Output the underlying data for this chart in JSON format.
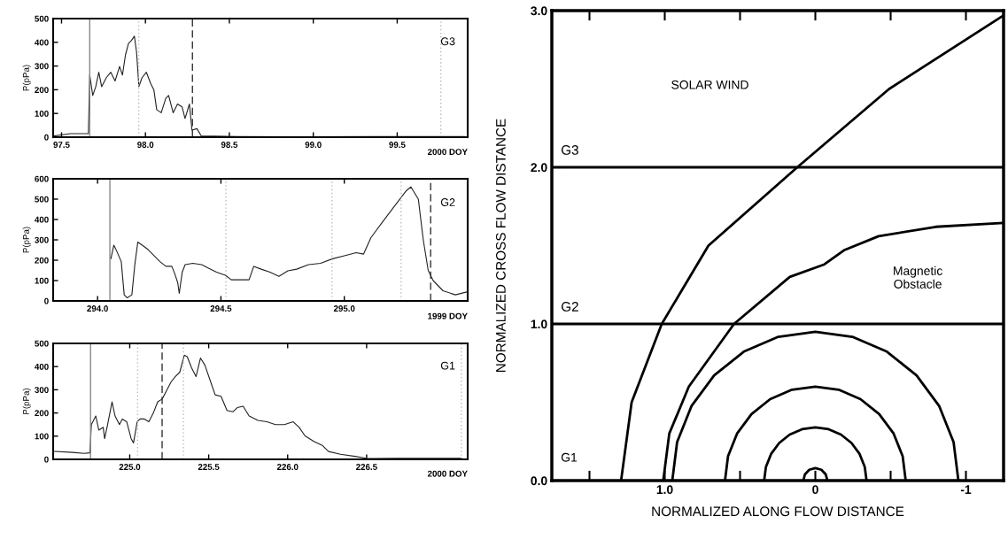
{
  "chart_data": [
    {
      "type": "line",
      "ylabel": "P(pPa)",
      "annotations": [
        "G3",
        "2000 DOY"
      ],
      "xlim": [
        97.45,
        99.92
      ],
      "ylim": [
        0,
        500
      ],
      "xticks": [
        {
          "value": 97.5,
          "label": "97.5"
        },
        {
          "value": 98.0,
          "label": "98.0"
        },
        {
          "value": 98.5,
          "label": "98.5"
        },
        {
          "value": 99.0,
          "label": "99.0"
        },
        {
          "value": 99.5,
          "label": "99.5"
        }
      ],
      "yticks": [
        0,
        100,
        200,
        300,
        400,
        500
      ],
      "ref_lines": [
        {
          "axis": "x",
          "value": 97.668,
          "color": "#888888",
          "line_style": "solid"
        },
        {
          "axis": "x",
          "value": 97.96,
          "color": "#bbbbbb",
          "line_style": "dotted"
        },
        {
          "axis": "x",
          "value": 98.28,
          "color": "#333333",
          "line_style": "dashed"
        },
        {
          "axis": "x",
          "value": 99.76,
          "color": "#bbbbbb",
          "line_style": "dotted"
        }
      ],
      "series": [
        {
          "color": "#222222",
          "x": [
            97.456,
            97.553,
            97.66,
            97.668,
            97.686,
            97.704,
            97.722,
            97.739,
            97.766,
            97.793,
            97.819,
            97.846,
            97.863,
            97.881,
            97.899,
            97.917,
            97.934,
            97.947,
            97.961,
            97.979,
            98.005,
            98.032,
            98.05,
            98.067,
            98.094,
            98.121,
            98.138,
            98.165,
            98.191,
            98.218,
            98.236,
            98.262,
            98.277,
            98.307,
            98.333,
            98.546,
            98.901,
            99.362,
            99.9
          ],
          "values": [
            5,
            15,
            15,
            262,
            176,
            213,
            274,
            213,
            250,
            274,
            237,
            298,
            262,
            347,
            395,
            408,
            426,
            359,
            213,
            250,
            274,
            225,
            200,
            116,
            103,
            164,
            176,
            103,
            140,
            128,
            79,
            140,
            30,
            36,
            5,
            3,
            2,
            3,
            3
          ]
        }
      ]
    },
    {
      "type": "line",
      "ylabel": "P(pPa)",
      "annotations": [
        "G2",
        "1999 DOY"
      ],
      "xlim": [
        293.82,
        295.5
      ],
      "ylim": [
        0,
        600
      ],
      "xticks": [
        {
          "value": 294.0,
          "label": "294.0"
        },
        {
          "value": 294.5,
          "label": "294.5"
        },
        {
          "value": 295.0,
          "label": "295.0"
        }
      ],
      "yticks": [
        0,
        100,
        200,
        300,
        400,
        500,
        600
      ],
      "ref_lines": [
        {
          "axis": "x",
          "value": 294.05,
          "color": "#888888",
          "line_style": "solid"
        },
        {
          "axis": "x",
          "value": 294.52,
          "color": "#bbbbbb",
          "line_style": "dotted"
        },
        {
          "axis": "x",
          "value": 294.95,
          "color": "#bbbbbb",
          "line_style": "dotted"
        },
        {
          "axis": "x",
          "value": 295.23,
          "color": "#bbbbbb",
          "line_style": "dotted"
        },
        {
          "axis": "x",
          "value": 295.35,
          "color": "#333333",
          "line_style": "dashed"
        }
      ],
      "series": [
        {
          "color": "#222222",
          "x": [
            294.054,
            294.066,
            294.078,
            294.096,
            294.108,
            294.12,
            294.139,
            294.151,
            294.163,
            294.181,
            294.205,
            294.229,
            294.253,
            294.277,
            294.301,
            294.313,
            294.325,
            294.331,
            294.343,
            294.355,
            294.386,
            294.422,
            294.446,
            294.482,
            294.518,
            294.542,
            294.59,
            294.614,
            294.633,
            294.663,
            294.699,
            294.735,
            294.771,
            294.807,
            294.855,
            294.904,
            294.952,
            295.0,
            295.048,
            295.078,
            295.108,
            295.15,
            295.2,
            295.25,
            295.27,
            295.3,
            295.32,
            295.34,
            295.36,
            295.4,
            295.45,
            295.5
          ],
          "values": [
            207,
            274,
            244,
            193,
            30,
            15,
            30,
            178,
            289,
            274,
            252,
            222,
            193,
            170,
            170,
            133,
            89,
            37,
            141,
            178,
            185,
            178,
            163,
            141,
            126,
            104,
            104,
            104,
            170,
            156,
            141,
            121,
            148,
            156,
            178,
            185,
            207,
            222,
            237,
            230,
            311,
            380,
            460,
            540,
            560,
            500,
            300,
            150,
            100,
            50,
            30,
            45
          ]
        }
      ]
    },
    {
      "type": "line",
      "ylabel": "P(pPa)",
      "annotations": [
        "G1",
        "2000 DOY"
      ],
      "xlim": [
        224.515,
        227.14
      ],
      "ylim": [
        0,
        500
      ],
      "xticks": [
        {
          "value": 225.0,
          "label": "225.0"
        },
        {
          "value": 225.5,
          "label": "225.5"
        },
        {
          "value": 226.0,
          "label": "226.0"
        },
        {
          "value": 226.5,
          "label": "226.5"
        }
      ],
      "yticks": [
        0,
        100,
        200,
        300,
        400,
        500
      ],
      "ref_lines": [
        {
          "axis": "x",
          "value": 224.752,
          "color": "#888888",
          "line_style": "solid"
        },
        {
          "axis": "x",
          "value": 225.05,
          "color": "#bbbbbb",
          "line_style": "dotted"
        },
        {
          "axis": "x",
          "value": 225.205,
          "color": "#333333",
          "line_style": "dashed"
        },
        {
          "axis": "x",
          "value": 225.34,
          "color": "#bbbbbb",
          "line_style": "dotted"
        },
        {
          "axis": "x",
          "value": 227.1,
          "color": "#bbbbbb",
          "line_style": "dotted"
        }
      ],
      "series": [
        {
          "color": "#222222",
          "x": [
            224.524,
            224.636,
            224.711,
            224.748,
            224.757,
            224.785,
            224.804,
            224.832,
            224.841,
            224.86,
            224.888,
            224.907,
            224.935,
            224.953,
            224.981,
            225.009,
            225.024,
            225.047,
            225.065,
            225.093,
            225.121,
            225.149,
            225.177,
            225.205,
            225.233,
            225.261,
            225.289,
            225.317,
            225.345,
            225.364,
            225.392,
            225.42,
            225.448,
            225.476,
            225.513,
            225.541,
            225.578,
            225.616,
            225.653,
            225.681,
            225.718,
            225.756,
            225.812,
            225.868,
            225.923,
            225.979,
            226.035,
            226.073,
            226.11,
            226.166,
            226.222,
            226.259,
            226.334,
            226.427,
            226.502,
            226.539,
            226.7,
            227.1
          ],
          "values": [
            34,
            30,
            26,
            28,
            150,
            187,
            126,
            138,
            89,
            150,
            248,
            187,
            150,
            174,
            162,
            89,
            71,
            162,
            174,
            174,
            162,
            199,
            248,
            260,
            296,
            333,
            357,
            376,
            449,
            443,
            394,
            357,
            437,
            406,
            333,
            278,
            272,
            211,
            205,
            223,
            229,
            187,
            168,
            162,
            150,
            150,
            162,
            138,
            101,
            77,
            59,
            34,
            22,
            13,
            4,
            4,
            5,
            5
          ]
        }
      ]
    },
    {
      "type": "line",
      "xlabel": "NORMALIZED ALONG FLOW DISTANCE",
      "ylabel": "NORMALIZED CROSS FLOW DISTANCE",
      "annotations": [
        "SOLAR WIND",
        "Magnetic\nObstacle",
        "G1"
      ],
      "xlim": [
        1.75,
        -1.25
      ],
      "ylim": [
        0,
        3
      ],
      "xticks": [
        {
          "value": 1.5,
          "label": null
        },
        {
          "value": 1.0,
          "label": "1.0"
        },
        {
          "value": 0.5,
          "label": null
        },
        {
          "value": 0,
          "label": "0"
        },
        {
          "value": -0.5,
          "label": null
        },
        {
          "value": -1,
          "label": "-1"
        }
      ],
      "yticks": [
        {
          "value": 0,
          "label": "0.0"
        },
        {
          "value": 1,
          "label": "1.0"
        },
        {
          "value": 2,
          "label": "2.0"
        },
        {
          "value": 3,
          "label": "3.0"
        }
      ],
      "ref_lines": [
        {
          "axis": "y",
          "value": 1,
          "label": "G2",
          "color": "#000000"
        },
        {
          "axis": "y",
          "value": 2,
          "label": "G3",
          "color": "#000000"
        }
      ],
      "series": [
        {
          "color": "#000000",
          "x": [
            1.29,
            1.22,
            1.02,
            0.71,
            0.12,
            -0.49,
            -1.25
          ],
          "values": [
            0,
            0.5,
            1.0,
            1.5,
            2.0,
            2.5,
            2.97
          ]
        },
        {
          "color": "#000000",
          "x": [
            1.01,
            0.97,
            0.84,
            0.54,
            0.17,
            -0.06,
            -0.19,
            -0.42,
            -0.8,
            -1.25
          ],
          "values": [
            0,
            0.3,
            0.6,
            1.0,
            1.3,
            1.38,
            1.47,
            1.56,
            1.62,
            1.645
          ]
        },
        {
          "color": "#000000",
          "x": [
            0.95,
            0.918,
            0.823,
            0.672,
            0.475,
            0.246,
            0,
            -0.246,
            -0.475,
            -0.672,
            -0.823,
            -0.918,
            -0.95
          ],
          "values": [
            0,
            0.246,
            0.475,
            0.672,
            0.823,
            0.918,
            0.95,
            0.918,
            0.823,
            0.672,
            0.475,
            0.246,
            0
          ]
        },
        {
          "color": "#000000",
          "x": [
            0.6,
            0.58,
            0.52,
            0.424,
            0.3,
            0.155,
            0,
            -0.155,
            -0.3,
            -0.424,
            -0.52,
            -0.58,
            -0.6
          ],
          "values": [
            0,
            0.155,
            0.3,
            0.424,
            0.52,
            0.58,
            0.6,
            0.58,
            0.52,
            0.424,
            0.3,
            0.155,
            0
          ]
        },
        {
          "color": "#000000",
          "x": [
            0.34,
            0.328,
            0.294,
            0.24,
            0.17,
            0.088,
            0,
            -0.088,
            -0.17,
            -0.24,
            -0.294,
            -0.328,
            -0.34
          ],
          "values": [
            0,
            0.088,
            0.17,
            0.24,
            0.294,
            0.328,
            0.34,
            0.328,
            0.294,
            0.24,
            0.17,
            0.088,
            0
          ]
        },
        {
          "color": "#000000",
          "x": [
            0.08,
            0.069,
            0.04,
            0,
            -0.04,
            -0.069,
            -0.08
          ],
          "values": [
            0,
            0.04,
            0.069,
            0.08,
            0.069,
            0.04,
            0
          ]
        }
      ]
    }
  ]
}
